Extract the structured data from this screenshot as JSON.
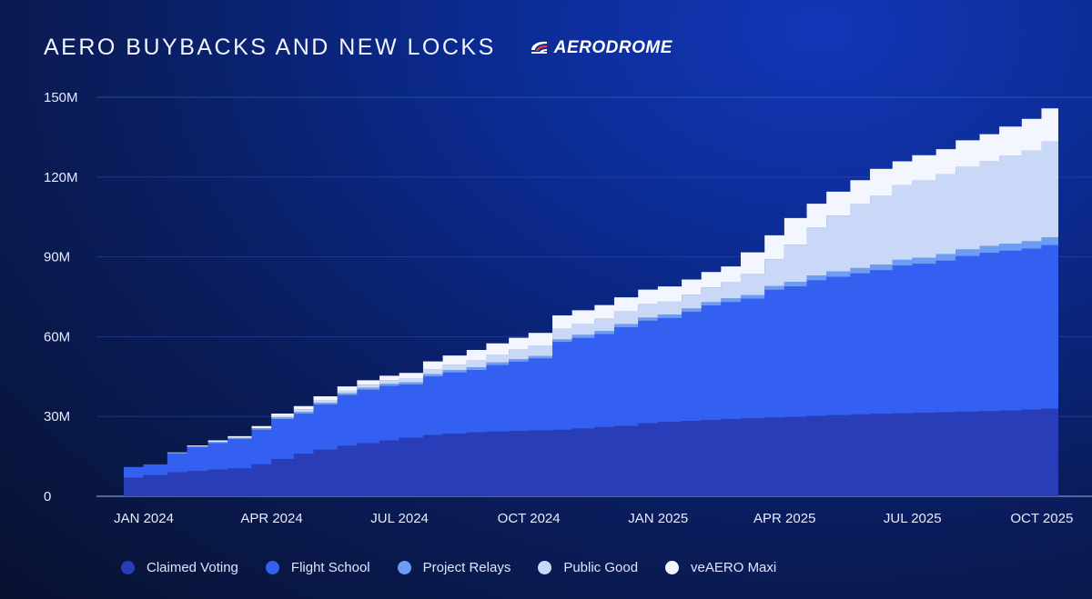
{
  "header": {
    "title": "AERO BUYBACKS AND NEW LOCKS",
    "brand": "AERODROME",
    "brand_icon": "aerodrome-logo-icon"
  },
  "legend": [
    {
      "label": "Claimed Voting",
      "color": "#2a3db8"
    },
    {
      "label": "Flight School",
      "color": "#3360f0"
    },
    {
      "label": "Project Relays",
      "color": "#6d9cf5"
    },
    {
      "label": "Public Good",
      "color": "#c9d8f7"
    },
    {
      "label": "veAERO Maxi",
      "color": "#f3f6ff"
    }
  ],
  "chart_data": {
    "type": "area",
    "stacked": true,
    "title": "AERO BUYBACKS AND NEW LOCKS",
    "ylim": [
      0,
      150
    ],
    "yticks": [
      "0",
      "30M",
      "60M",
      "90M",
      "120M",
      "150M"
    ],
    "xticks": [
      "JAN 2024",
      "APR 2024",
      "JUL 2024",
      "OCT 2024",
      "JAN 2025",
      "APR 2025",
      "JUL 2025",
      "OCT 2025"
    ],
    "grid": "horizontal",
    "legend_position": "bottom",
    "x": [
      "2024-01-01",
      "2024-01-15",
      "2024-02-01",
      "2024-02-15",
      "2024-03-01",
      "2024-03-15",
      "2024-04-01",
      "2024-04-15",
      "2024-05-01",
      "2024-05-15",
      "2024-06-01",
      "2024-06-15",
      "2024-07-01",
      "2024-07-15",
      "2024-08-01",
      "2024-08-15",
      "2024-09-01",
      "2024-09-15",
      "2024-10-01",
      "2024-10-15",
      "2024-11-01",
      "2024-11-15",
      "2024-12-01",
      "2024-12-15",
      "2025-01-01",
      "2025-01-15",
      "2025-02-01",
      "2025-02-15",
      "2025-03-01",
      "2025-03-15",
      "2025-04-01",
      "2025-04-15",
      "2025-05-01",
      "2025-05-15",
      "2025-06-01",
      "2025-06-15",
      "2025-07-01",
      "2025-07-15",
      "2025-08-01",
      "2025-08-15",
      "2025-09-01",
      "2025-09-15",
      "2025-10-01",
      "2025-10-15",
      "2025-10-27"
    ],
    "series": [
      {
        "name": "Claimed Voting",
        "color": "#2a3db8",
        "values": [
          7,
          8,
          9,
          9.5,
          10,
          10.5,
          12,
          14,
          16,
          17.5,
          19,
          20,
          21,
          22,
          23,
          23.5,
          24,
          24.3,
          24.6,
          24.8,
          25,
          25.5,
          26,
          26.5,
          27.5,
          28,
          28.3,
          28.7,
          29,
          29.3,
          29.6,
          29.9,
          30.2,
          30.5,
          30.8,
          31,
          31.2,
          31.4,
          31.6,
          31.8,
          32,
          32.3,
          32.6,
          32.9,
          33
        ]
      },
      {
        "name": "Flight School",
        "color": "#3360f0",
        "values": [
          4,
          4,
          7,
          9,
          10,
          11,
          13,
          15,
          15,
          17,
          19,
          20,
          20.5,
          20,
          22,
          23,
          23.5,
          25,
          26,
          27,
          33,
          34,
          35,
          37,
          38.5,
          39,
          41,
          43,
          44,
          45,
          48,
          49,
          51,
          52,
          53,
          54,
          55.5,
          56,
          57,
          58.5,
          59.5,
          60,
          60.5,
          61.5,
          63
        ]
      },
      {
        "name": "Project Relays",
        "color": "#6d9cf5",
        "values": [
          0,
          0,
          0.3,
          0.3,
          0.5,
          0.5,
          0.6,
          0.6,
          0.7,
          0.7,
          0.8,
          0.8,
          0.8,
          0.9,
          0.9,
          0.9,
          1,
          1,
          1,
          1,
          1,
          1.2,
          1.2,
          1.2,
          1.2,
          1.3,
          1.3,
          1.3,
          1.4,
          1.4,
          1.5,
          1.7,
          1.8,
          2,
          2,
          2.1,
          2.2,
          2.3,
          2.4,
          2.5,
          2.6,
          2.7,
          2.8,
          2.9,
          3
        ]
      },
      {
        "name": "Public Good",
        "color": "#c9d8f7",
        "values": [
          0,
          0,
          0,
          0,
          0,
          0,
          0,
          0.5,
          1,
          1,
          1,
          1.2,
          1.3,
          1.5,
          1.8,
          2,
          2.5,
          3,
          3.5,
          3.8,
          4,
          4.2,
          4.5,
          4.8,
          5,
          5,
          5.2,
          5.5,
          6,
          8,
          10,
          14,
          18,
          21,
          24,
          26,
          28,
          29,
          30,
          31,
          32,
          33,
          34,
          36,
          38
        ]
      },
      {
        "name": "veAERO Maxi",
        "color": "#f3f6ff",
        "values": [
          0,
          0,
          0.2,
          0.3,
          0.5,
          0.6,
          0.8,
          1,
          1.2,
          1.4,
          1.5,
          1.6,
          1.7,
          2,
          3,
          3.5,
          4,
          4.2,
          4.5,
          4.8,
          5,
          5,
          5.2,
          5.3,
          5.5,
          5.6,
          5.7,
          5.8,
          6,
          8,
          9,
          10,
          9,
          9,
          9,
          10,
          9,
          9.5,
          9.5,
          10,
          10,
          11,
          12,
          12.5,
          13
        ]
      }
    ]
  }
}
